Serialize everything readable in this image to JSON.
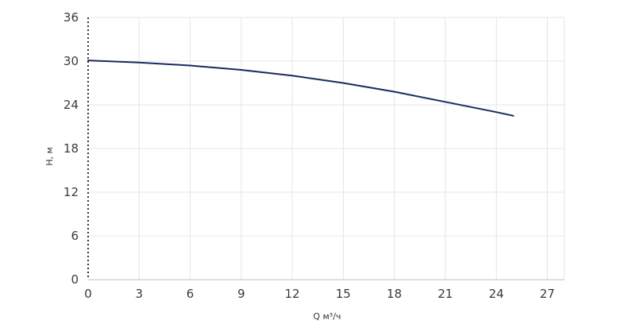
{
  "chart_data": {
    "type": "line",
    "xlabel": "Q м³/ч",
    "ylabel": "H, м",
    "xlim": [
      0,
      28
    ],
    "ylim": [
      0,
      36
    ],
    "x_ticks": [
      0,
      3,
      6,
      9,
      12,
      15,
      18,
      21,
      24,
      27
    ],
    "y_ticks": [
      0,
      6,
      12,
      18,
      24,
      30,
      36
    ],
    "grid": true,
    "series": [
      {
        "color": "#1a2a5e",
        "x": [
          0,
          3,
          6,
          9,
          12,
          15,
          18,
          21,
          24,
          25
        ],
        "y": [
          30.1,
          29.8,
          29.4,
          28.8,
          28.0,
          27.0,
          25.8,
          24.4,
          23.0,
          22.5
        ]
      }
    ]
  }
}
